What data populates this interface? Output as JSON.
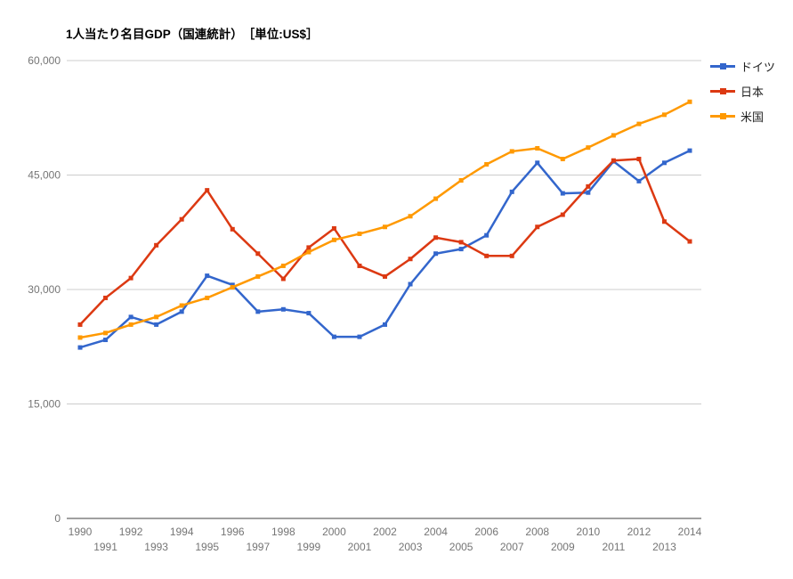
{
  "page": {
    "background": "#ffffff"
  },
  "chart_data": {
    "type": "line",
    "title": "1人当たり名目GDP（国連統計）　［単位:US$］",
    "unit": "US$",
    "x": [
      1990,
      1991,
      1992,
      1993,
      1994,
      1995,
      1996,
      1997,
      1998,
      1999,
      2000,
      2001,
      2002,
      2003,
      2004,
      2005,
      2006,
      2007,
      2008,
      2009,
      2010,
      2011,
      2012,
      2013,
      2014
    ],
    "series": [
      {
        "id": "germany",
        "name": "ドイツ",
        "color": "#3366cc",
        "values": [
          22400,
          23400,
          26400,
          25400,
          27100,
          31800,
          30600,
          27100,
          27400,
          26900,
          23800,
          23800,
          25400,
          30700,
          34700,
          35300,
          37100,
          42800,
          46600,
          42600,
          42700,
          46800,
          44200,
          46600,
          48200
        ]
      },
      {
        "id": "japan",
        "name": "日本",
        "color": "#dc3912",
        "values": [
          25400,
          28900,
          31500,
          35800,
          39200,
          43000,
          37900,
          34700,
          31400,
          35500,
          38000,
          33100,
          31700,
          34000,
          36800,
          36200,
          34400,
          34400,
          38200,
          39800,
          43500,
          46900,
          47100,
          38900,
          36300
        ]
      },
      {
        "id": "usa",
        "name": "米国",
        "color": "#ff9900",
        "values": [
          23700,
          24300,
          25400,
          26400,
          27900,
          28900,
          30300,
          31700,
          33100,
          34900,
          36500,
          37300,
          38200,
          39600,
          41900,
          44300,
          46400,
          48100,
          48500,
          47100,
          48600,
          50200,
          51700,
          52900,
          54600
        ]
      }
    ],
    "ylim": [
      0,
      60000
    ],
    "yticks": [
      {
        "value": 0,
        "label": "0"
      },
      {
        "value": 15000,
        "label": "15,000"
      },
      {
        "value": 30000,
        "label": "30,000"
      },
      {
        "value": 45000,
        "label": "45,000"
      },
      {
        "value": 60000,
        "label": "60,000"
      }
    ],
    "grid": true,
    "legend_position": "right",
    "marker": "square"
  },
  "colors": {
    "grid_line": "#cccccc",
    "axis_line": "#424242",
    "tick_label": "#757575",
    "legend_text": "#222222",
    "title_text": "#000000"
  }
}
